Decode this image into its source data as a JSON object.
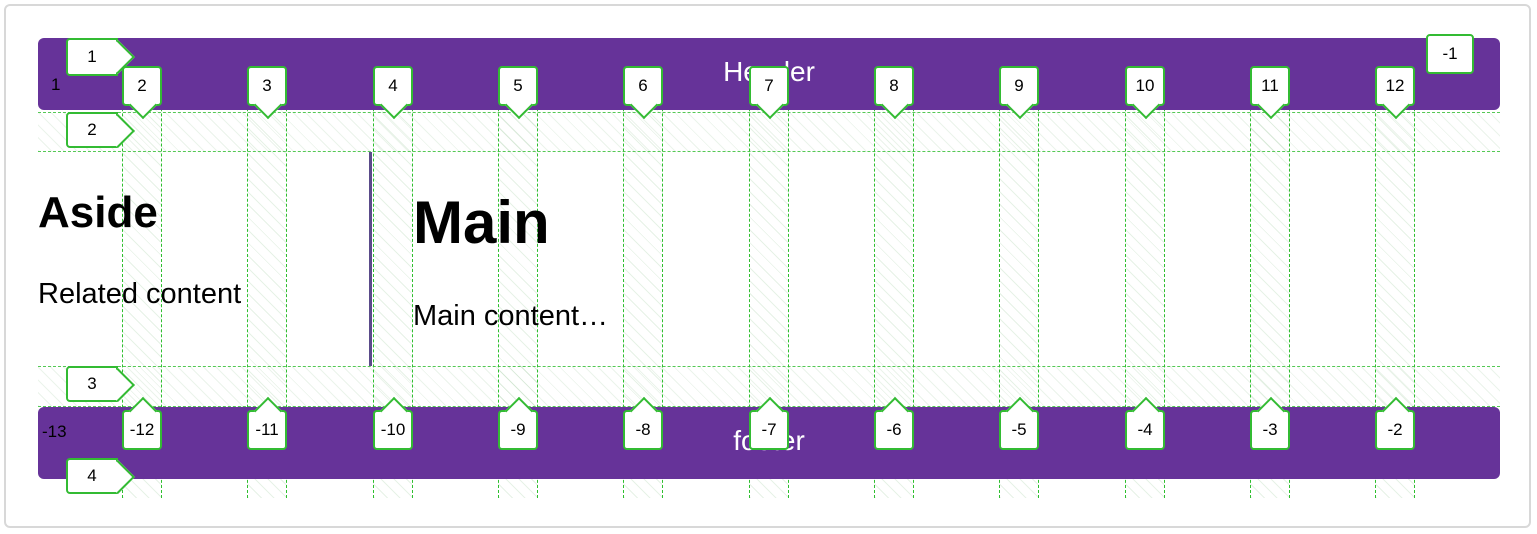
{
  "header": {
    "label": "Header"
  },
  "footer": {
    "label": "footer"
  },
  "aside": {
    "heading": "Aside",
    "text": "Related content"
  },
  "main": {
    "heading": "Main",
    "text": "Main content…"
  },
  "grid_overlay": {
    "column_lines_top": [
      "2",
      "3",
      "4",
      "5",
      "6",
      "7",
      "8",
      "9",
      "10",
      "11",
      "12"
    ],
    "column_lines_bottom": [
      "-12",
      "-11",
      "-10",
      "-9",
      "-8",
      "-7",
      "-6",
      "-5",
      "-4",
      "-3",
      "-2"
    ],
    "row_lines": [
      "1",
      "2",
      "3",
      "4"
    ],
    "corner_labels": {
      "top_left_col": "1",
      "top_left_row": "1",
      "top_right_col": "-1",
      "bottom_left_col": "-13"
    }
  },
  "colors": {
    "bar": "#663399",
    "grid_line": "#33bb33"
  }
}
